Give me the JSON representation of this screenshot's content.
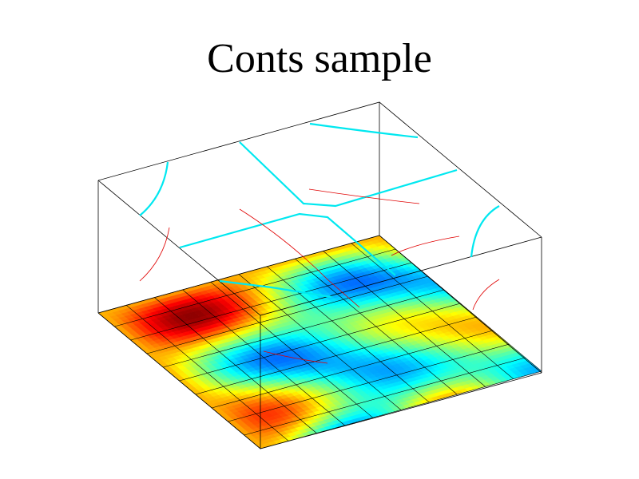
{
  "chart_data": {
    "type": "contour3d",
    "title": "Conts sample"
  }
}
